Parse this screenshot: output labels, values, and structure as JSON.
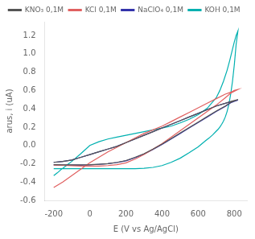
{
  "chart_data": {
    "type": "line",
    "xlabel": "E (V vs Ag/AgCl)",
    "ylabel": "arus, i (uA)",
    "xlim": [
      -250,
      870
    ],
    "ylim": [
      -0.6,
      1.35
    ],
    "xticks": [
      -200,
      0,
      200,
      400,
      600,
      800
    ],
    "yticks": [
      -0.6,
      -0.4,
      -0.2,
      {
        "value": 0.0,
        "label": "0.0"
      },
      0.2,
      0.4,
      0.6,
      0.8,
      {
        "value": 1.0,
        "label": "1.0"
      },
      1.2
    ],
    "grid": false,
    "legend": "top",
    "series": [
      {
        "name": "KNO₃ 0,1M",
        "color": "#555555",
        "x": [
          -200,
          -150,
          -100,
          -50,
          0,
          50,
          100,
          150,
          200,
          250,
          300,
          350,
          400,
          450,
          500,
          550,
          600,
          650,
          700,
          750,
          780,
          800,
          820,
          820,
          800,
          780,
          750,
          700,
          650,
          600,
          550,
          500,
          450,
          400,
          350,
          300,
          250,
          200,
          150,
          100,
          50,
          0,
          -50,
          -100,
          -150,
          -200
        ],
        "values": [
          -0.185,
          -0.175,
          -0.16,
          -0.13,
          -0.1,
          -0.07,
          -0.04,
          -0.01,
          0.03,
          0.07,
          0.11,
          0.15,
          0.19,
          0.23,
          0.27,
          0.31,
          0.35,
          0.39,
          0.43,
          0.46,
          0.48,
          0.49,
          0.5,
          0.5,
          0.485,
          0.47,
          0.43,
          0.375,
          0.315,
          0.255,
          0.195,
          0.135,
          0.075,
          0.015,
          -0.04,
          -0.09,
          -0.13,
          -0.165,
          -0.185,
          -0.2,
          -0.205,
          -0.21,
          -0.212,
          -0.213,
          -0.213,
          -0.21
        ]
      },
      {
        "name": "KCl 0,1M",
        "color": "#e06060",
        "x": [
          -200,
          -150,
          -100,
          -50,
          0,
          50,
          100,
          150,
          200,
          250,
          300,
          350,
          400,
          450,
          500,
          550,
          600,
          650,
          700,
          750,
          780,
          800,
          820,
          820,
          800,
          780,
          750,
          700,
          650,
          600,
          550,
          500,
          450,
          400,
          350,
          300,
          250,
          200,
          150,
          100,
          50,
          0,
          -50,
          -100,
          -150,
          -200
        ],
        "values": [
          -0.46,
          -0.4,
          -0.33,
          -0.26,
          -0.19,
          -0.13,
          -0.07,
          -0.02,
          0.03,
          0.08,
          0.13,
          0.17,
          0.21,
          0.26,
          0.31,
          0.36,
          0.41,
          0.46,
          0.51,
          0.56,
          0.58,
          0.6,
          0.61,
          0.61,
          0.59,
          0.57,
          0.52,
          0.44,
          0.37,
          0.3,
          0.23,
          0.16,
          0.09,
          0.02,
          -0.04,
          -0.1,
          -0.15,
          -0.19,
          -0.21,
          -0.22,
          -0.225,
          -0.225,
          -0.225,
          -0.222,
          -0.218,
          -0.215
        ]
      },
      {
        "name": "NaClO₄ 0,1M",
        "color": "#3333aa",
        "x": [
          -200,
          -150,
          -100,
          -50,
          0,
          50,
          100,
          150,
          200,
          250,
          300,
          350,
          400,
          450,
          500,
          550,
          600,
          650,
          700,
          750,
          780,
          800,
          820,
          820,
          800,
          780,
          750,
          700,
          650,
          600,
          550,
          500,
          450,
          400,
          350,
          300,
          250,
          200,
          150,
          100,
          50,
          0,
          -50,
          -100,
          -150,
          -200
        ],
        "values": [
          -0.185,
          -0.175,
          -0.16,
          -0.13,
          -0.1,
          -0.07,
          -0.04,
          -0.01,
          0.03,
          0.07,
          0.11,
          0.15,
          0.19,
          0.23,
          0.27,
          0.31,
          0.35,
          0.39,
          0.43,
          0.46,
          0.475,
          0.485,
          0.495,
          0.495,
          0.48,
          0.465,
          0.425,
          0.37,
          0.31,
          0.25,
          0.19,
          0.13,
          0.07,
          0.01,
          -0.045,
          -0.095,
          -0.135,
          -0.168,
          -0.187,
          -0.2,
          -0.207,
          -0.212,
          -0.214,
          -0.215,
          -0.215,
          -0.213
        ]
      },
      {
        "name": "KOH 0,1M",
        "color": "#00b0b0",
        "x": [
          -200,
          -180,
          -160,
          -140,
          -120,
          -100,
          -50,
          0,
          50,
          100,
          150,
          200,
          250,
          300,
          350,
          400,
          450,
          500,
          550,
          600,
          650,
          700,
          720,
          740,
          760,
          775,
          790,
          800,
          810,
          820,
          820,
          810,
          800,
          790,
          780,
          770,
          760,
          750,
          740,
          730,
          720,
          710,
          700,
          680,
          660,
          640,
          600,
          550,
          500,
          450,
          400,
          350,
          300,
          250,
          200,
          150,
          100,
          50,
          0,
          -50,
          -100,
          -150,
          -200
        ],
        "values": [
          -0.33,
          -0.3,
          -0.265,
          -0.235,
          -0.205,
          -0.175,
          -0.09,
          0.0,
          0.04,
          0.07,
          0.09,
          0.11,
          0.13,
          0.15,
          0.17,
          0.19,
          0.21,
          0.245,
          0.285,
          0.335,
          0.405,
          0.52,
          0.6,
          0.7,
          0.82,
          0.93,
          1.05,
          1.13,
          1.2,
          1.25,
          1.25,
          1.1,
          0.88,
          0.7,
          0.56,
          0.45,
          0.37,
          0.31,
          0.265,
          0.23,
          0.2,
          0.175,
          0.155,
          0.115,
          0.08,
          0.05,
          -0.015,
          -0.08,
          -0.14,
          -0.185,
          -0.22,
          -0.24,
          -0.25,
          -0.255,
          -0.255,
          -0.255,
          -0.255,
          -0.255,
          -0.255,
          -0.255,
          -0.255,
          -0.255,
          -0.255
        ]
      }
    ]
  }
}
